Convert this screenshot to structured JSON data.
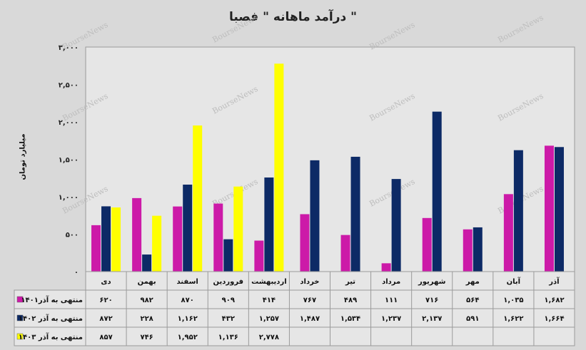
{
  "chart_data": {
    "type": "bar",
    "title": "درآمد ماهانه \" فصبا \"",
    "ylabel": "میلیارد تومان",
    "ylim": [
      0,
      3000
    ],
    "yticks": [
      "۰",
      "۵۰۰",
      "۱,۰۰۰",
      "۱,۵۰۰",
      "۲,۰۰۰",
      "۲,۵۰۰",
      "۳,۰۰۰"
    ],
    "ytick_values": [
      0,
      500,
      1000,
      1500,
      2000,
      2500,
      3000
    ],
    "grid": false,
    "legend": "bottom-table",
    "categories": [
      "دی",
      "بهمن",
      "اسفند",
      "فروردین",
      "اردیبهشت",
      "خرداد",
      "تیر",
      "مرداد",
      "شهریور",
      "مهر",
      "آبان",
      "آذر"
    ],
    "series": [
      {
        "name": "منتهی به آذر۱۴۰۱",
        "color": "#cc1aa8",
        "values": [
          620,
          982,
          870,
          909,
          414,
          767,
          489,
          111,
          716,
          564,
          1035,
          1682
        ],
        "labels": [
          "۶۲۰",
          "۹۸۲",
          "۸۷۰",
          "۹۰۹",
          "۴۱۴",
          "۷۶۷",
          "۴۸۹",
          "۱۱۱",
          "۷۱۶",
          "۵۶۴",
          "۱,۰۳۵",
          "۱,۶۸۲"
        ]
      },
      {
        "name": "منتهی به آذر ۱۴۰۲",
        "color": "#0d2a66",
        "values": [
          872,
          228,
          1162,
          432,
          1257,
          1487,
          1534,
          1237,
          2137,
          591,
          1622,
          1664
        ],
        "labels": [
          "۸۷۲",
          "۲۲۸",
          "۱,۱۶۲",
          "۴۳۲",
          "۱,۲۵۷",
          "۱,۴۸۷",
          "۱,۵۳۴",
          "۱,۲۳۷",
          "۲,۱۳۷",
          "۵۹۱",
          "۱,۶۲۲",
          "۱,۶۶۴"
        ]
      },
      {
        "name": "منتهی به آذر ۱۴۰۳",
        "color": "#ffff00",
        "values": [
          857,
          746,
          1952,
          1136,
          2778,
          null,
          null,
          null,
          null,
          null,
          null,
          null
        ],
        "labels": [
          "۸۵۷",
          "۷۴۶",
          "۱,۹۵۲",
          "۱,۱۳۶",
          "۲,۷۷۸",
          "",
          "",
          "",
          "",
          "",
          "",
          ""
        ]
      }
    ]
  },
  "watermark": "BourseNews"
}
